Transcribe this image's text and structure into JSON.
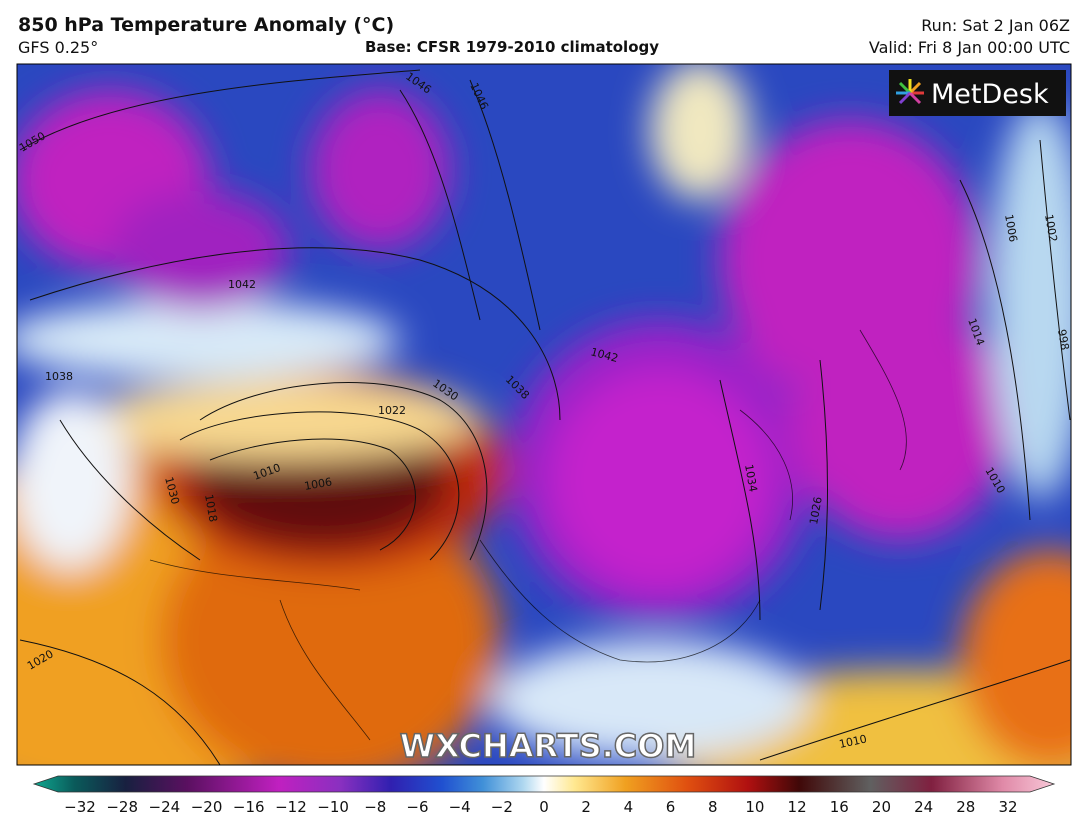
{
  "header": {
    "title": "850 hPa Temperature Anomaly (°C)",
    "model": "GFS 0.25°",
    "base": "Base: CFSR 1979-2010 climatology",
    "run": "Run: Sat 2 Jan 06Z",
    "valid": "Valid: Fri 8 Jan 00:00 UTC"
  },
  "logo": "MetDesk",
  "watermark": "WXCHARTS.COM",
  "contour_labels": [
    "1046",
    "1046",
    "1050",
    "1042",
    "1038",
    "1030",
    "1022",
    "1038",
    "1042",
    "1010",
    "1006",
    "1018",
    "1030",
    "1034",
    "1026",
    "1014",
    "1010",
    "1006",
    "1002",
    "1010",
    "998",
    "1020"
  ],
  "colorbar": {
    "ticks": [
      "−32",
      "−28",
      "−24",
      "−20",
      "−16",
      "−12",
      "−10",
      "−8",
      "−6",
      "−4",
      "−2",
      "0",
      "2",
      "4",
      "6",
      "8",
      "10",
      "12",
      "16",
      "20",
      "24",
      "28",
      "32"
    ]
  }
}
